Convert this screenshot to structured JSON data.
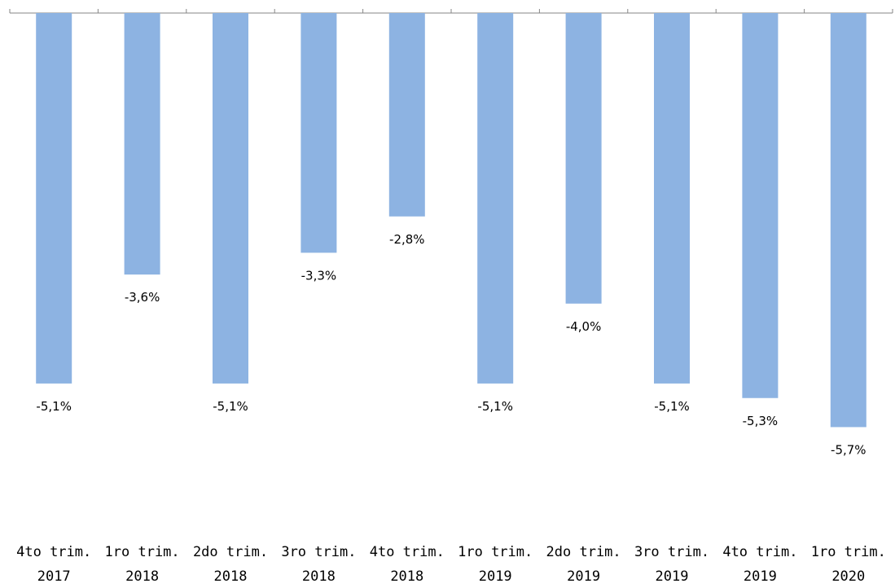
{
  "chart_data": {
    "type": "bar",
    "categories": [
      [
        "4to trim.",
        "2017"
      ],
      [
        "1ro trim.",
        "2018"
      ],
      [
        "2do trim.",
        "2018"
      ],
      [
        "3ro trim.",
        "2018"
      ],
      [
        "4to trim.",
        "2018"
      ],
      [
        "1ro trim.",
        "2019"
      ],
      [
        "2do trim.",
        "2019"
      ],
      [
        "3ro trim.",
        "2019"
      ],
      [
        "4to trim.",
        "2019"
      ],
      [
        "1ro trim.",
        "2020"
      ]
    ],
    "values": [
      -5.1,
      -3.6,
      -5.1,
      -3.3,
      -2.8,
      -5.1,
      -4.0,
      -5.1,
      -5.3,
      -5.7
    ],
    "value_labels": [
      "-5,1%",
      "-3,6%",
      "-5,1%",
      "-3,3%",
      "-2,8%",
      "-5,1%",
      "-4,0%",
      "-5,1%",
      "-5,3%",
      "-5,7%"
    ],
    "bar_color": "#8db3e2",
    "axis_color": "#868686",
    "title": "",
    "xlabel": "",
    "ylabel": "",
    "ylim": [
      -6.0,
      0
    ],
    "grid": false,
    "legend": "none"
  }
}
